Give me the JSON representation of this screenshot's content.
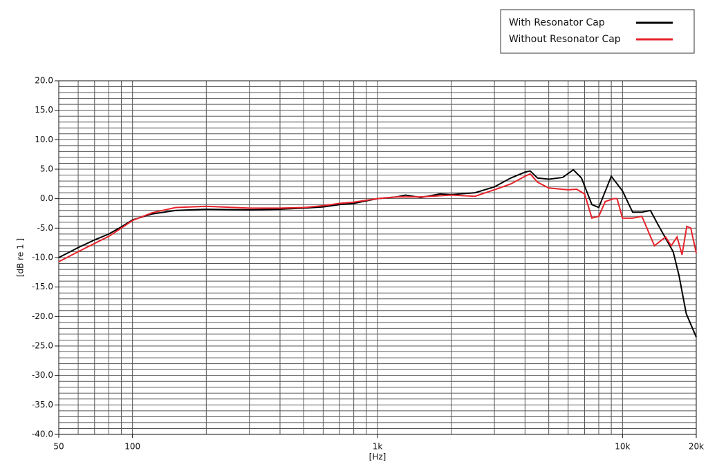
{
  "chart_data": {
    "type": "line",
    "xlabel": "[Hz]",
    "ylabel": "[dB re 1 ]",
    "xscale": "log",
    "xminor": "log",
    "yminor_step": 1,
    "xlim": [
      50,
      20000
    ],
    "ylim": [
      -40,
      20
    ],
    "xticks": [
      50,
      100,
      {
        "value": 1000,
        "label": "1k"
      },
      {
        "value": 10000,
        "label": "10k"
      },
      {
        "value": 20000,
        "label": "20k"
      }
    ],
    "yticks": [
      {
        "value": 20,
        "label": "20.0"
      },
      {
        "value": 15,
        "label": "15.0"
      },
      {
        "value": 10,
        "label": "10.0"
      },
      {
        "value": 5,
        "label": "5.0"
      },
      {
        "value": 0,
        "label": "0.0"
      },
      {
        "value": -5,
        "label": "-5.0"
      },
      {
        "value": -10,
        "label": "-10.0"
      },
      {
        "value": -15,
        "label": "-15.0"
      },
      {
        "value": -20,
        "label": "-20.0"
      },
      {
        "value": -25,
        "label": "-25.0"
      },
      {
        "value": -30,
        "label": "-30.0"
      },
      {
        "value": -35,
        "label": "-35.0"
      },
      {
        "value": -40,
        "label": "-40.0"
      }
    ],
    "grid": true,
    "series": [
      {
        "name": "With Resonator Cap",
        "color": "#000000",
        "x": [
          50,
          60,
          70,
          80,
          90,
          100,
          120,
          150,
          200,
          300,
          400,
          500,
          600,
          700,
          800,
          1000,
          1200,
          1300,
          1500,
          1800,
          2000,
          2500,
          3000,
          3500,
          4000,
          4200,
          4500,
          5000,
          5700,
          6300,
          6800,
          7500,
          8000,
          9000,
          10000,
          11000,
          12000,
          13000,
          14000,
          16100,
          17000,
          18200,
          20000
        ],
        "values": [
          -10,
          -8.3,
          -7,
          -6,
          -4.8,
          -3.6,
          -2.6,
          -2,
          -1.8,
          -1.9,
          -1.8,
          -1.6,
          -1.4,
          -1,
          -0.8,
          0,
          0.3,
          0.6,
          0.2,
          0.8,
          0.7,
          1,
          2,
          3.5,
          4.5,
          4.7,
          3.5,
          3.3,
          3.6,
          4.9,
          3.5,
          -1,
          -1.5,
          3.8,
          1.3,
          -2.3,
          -2.3,
          -2,
          -4.5,
          -9,
          -13,
          -19.5,
          -23.5
        ]
      },
      {
        "name": "Without Resonator Cap",
        "color": "#e8222a",
        "x": [
          50,
          60,
          70,
          80,
          90,
          100,
          120,
          150,
          200,
          300,
          400,
          500,
          600,
          700,
          800,
          1000,
          1200,
          1500,
          2000,
          2500,
          3000,
          3500,
          4000,
          4200,
          4500,
          5000,
          6000,
          6500,
          7000,
          7500,
          8000,
          8500,
          9200,
          9500,
          10000,
          11000,
          12000,
          13500,
          15000,
          15800,
          16700,
          17500,
          18300,
          19000,
          20000
        ],
        "values": [
          -10.7,
          -9,
          -7.6,
          -6.4,
          -5,
          -3.7,
          -2.4,
          -1.5,
          -1.3,
          -1.6,
          -1.6,
          -1.5,
          -1.2,
          -0.8,
          -0.6,
          0,
          0.3,
          0.3,
          0.6,
          0.4,
          1.5,
          2.5,
          3.8,
          4.2,
          2.8,
          1.8,
          1.5,
          1.6,
          0.8,
          -3.3,
          -3,
          -0.5,
          0,
          0,
          -3.3,
          -3.3,
          -3,
          -8,
          -6.5,
          -8,
          -6.5,
          -9.5,
          -4.7,
          -5,
          -9.2
        ]
      }
    ]
  }
}
